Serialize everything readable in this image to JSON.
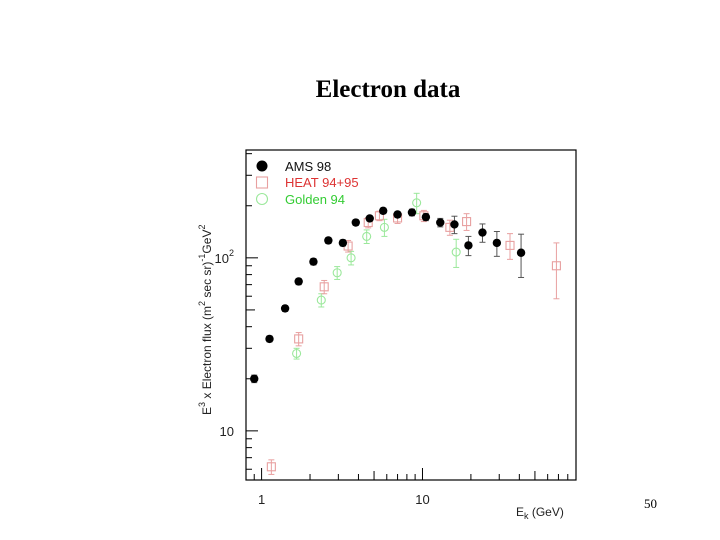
{
  "slide": {
    "title": "Electron data",
    "page_number": "50"
  },
  "chart_data": {
    "type": "scatter",
    "xscale": "log",
    "yscale": "log",
    "xlim": [
      0.8,
      90
    ],
    "ylim": [
      5.2,
      420
    ],
    "x_ticks": [
      {
        "value": 1,
        "label": "1"
      },
      {
        "value": 10,
        "label": "10"
      }
    ],
    "y_ticks": [
      {
        "value": 10,
        "label": "10"
      },
      {
        "value": 100,
        "label": "10",
        "sup": "2"
      }
    ],
    "xlabel": {
      "main": "E",
      "sub": "k",
      "rest": " (GeV)"
    },
    "ylabel": {
      "p1": "E",
      "s1": "3",
      "p2": " x Electron flux (m",
      "s2": "2",
      "p3": " sec sr)",
      "s3": "-1",
      "p4": "GeV",
      "s4": "2"
    },
    "legend_position": "top-left",
    "grid": false,
    "series": [
      {
        "name": "AMS 98",
        "marker": "filled-circle",
        "color": "#000000",
        "points": [
          {
            "x": 0.9,
            "y": 20,
            "err": 1
          },
          {
            "x": 1.12,
            "y": 34,
            "err": 1.3
          },
          {
            "x": 1.4,
            "y": 51,
            "err": 2
          },
          {
            "x": 1.7,
            "y": 73,
            "err": 3
          },
          {
            "x": 2.1,
            "y": 95,
            "err": 4
          },
          {
            "x": 2.6,
            "y": 126,
            "err": 5
          },
          {
            "x": 3.2,
            "y": 122,
            "err": 5
          },
          {
            "x": 3.85,
            "y": 160,
            "err": 6
          },
          {
            "x": 4.7,
            "y": 169,
            "err": 6
          },
          {
            "x": 5.7,
            "y": 187,
            "err": 7
          },
          {
            "x": 7.0,
            "y": 178,
            "err": 7
          },
          {
            "x": 8.6,
            "y": 183,
            "err": 8
          },
          {
            "x": 10.5,
            "y": 172,
            "err": 8
          },
          {
            "x": 12.9,
            "y": 160,
            "err": 9
          },
          {
            "x": 15.8,
            "y": 156,
            "err": 18
          },
          {
            "x": 19.3,
            "y": 118,
            "err": 15
          },
          {
            "x": 23.6,
            "y": 140,
            "err": 17
          },
          {
            "x": 29,
            "y": 122,
            "err": 20
          },
          {
            "x": 41,
            "y": 107,
            "err": 30
          }
        ]
      },
      {
        "name": "HEAT 94+95",
        "marker": "open-square",
        "color": "#e8a0a0",
        "points": [
          {
            "x": 1.15,
            "y": 6.2,
            "err": 0.6
          },
          {
            "x": 1.7,
            "y": 34,
            "err": 3
          },
          {
            "x": 2.45,
            "y": 68,
            "err": 6
          },
          {
            "x": 3.45,
            "y": 117,
            "err": 9
          },
          {
            "x": 4.6,
            "y": 160,
            "err": 11
          },
          {
            "x": 5.4,
            "y": 175,
            "err": 11
          },
          {
            "x": 7.0,
            "y": 170,
            "err": 12
          },
          {
            "x": 10.2,
            "y": 175,
            "err": 13
          },
          {
            "x": 14.8,
            "y": 150,
            "err": 15
          },
          {
            "x": 18.8,
            "y": 162,
            "err": 18
          },
          {
            "x": 35,
            "y": 118,
            "err": 20
          },
          {
            "x": 68,
            "y": 90,
            "err": 32
          }
        ]
      },
      {
        "name": "Golden 94",
        "marker": "open-circle",
        "color": "#9be89b",
        "points": [
          {
            "x": 1.65,
            "y": 28,
            "err": 2
          },
          {
            "x": 2.35,
            "y": 57,
            "err": 5
          },
          {
            "x": 2.95,
            "y": 82,
            "err": 7
          },
          {
            "x": 3.6,
            "y": 100,
            "err": 9
          },
          {
            "x": 4.5,
            "y": 133,
            "err": 12
          },
          {
            "x": 5.8,
            "y": 150,
            "err": 17
          },
          {
            "x": 9.2,
            "y": 208,
            "err": 28
          },
          {
            "x": 16.2,
            "y": 108,
            "err": 20
          }
        ]
      }
    ]
  }
}
